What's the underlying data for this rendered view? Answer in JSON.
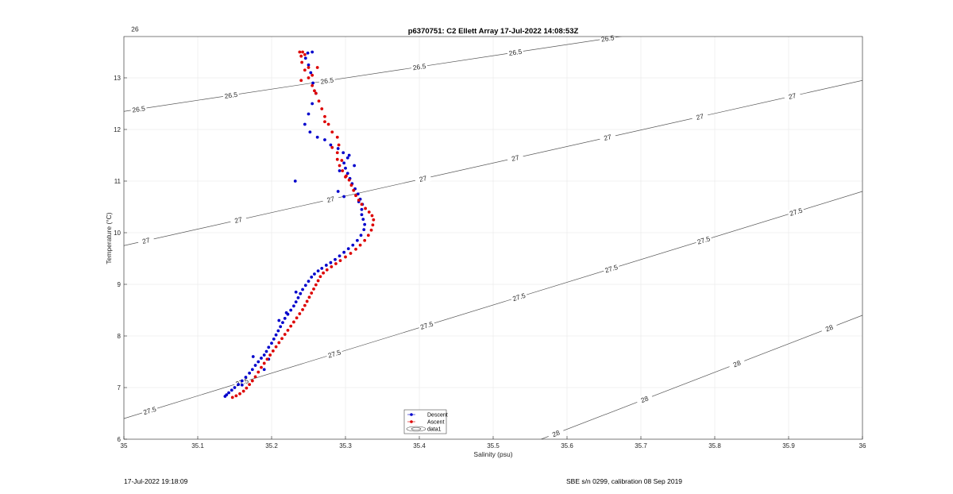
{
  "chart_data": {
    "type": "scatter",
    "title": "p6370751: C2 Ellett Array 17-Jul-2022 14:08:53Z",
    "xlabel": "Salinity (psu)",
    "ylabel": "Temperature (°C)",
    "xlim": [
      35,
      36
    ],
    "ylim": [
      6,
      13.8
    ],
    "x_ticks": [
      35,
      35.1,
      35.2,
      35.3,
      35.4,
      35.5,
      35.6,
      35.7,
      35.8,
      35.9,
      36
    ],
    "y_ticks": [
      6,
      7,
      8,
      9,
      10,
      11,
      12,
      13
    ],
    "grid": true,
    "legend": {
      "position": "bottom-center",
      "entries": [
        "Descent",
        "Ascent",
        "data1"
      ]
    },
    "series": [
      {
        "name": "Descent",
        "color": "#0000cc",
        "points": [
          [
            35.137,
            6.83
          ],
          [
            35.139,
            6.86
          ],
          [
            35.142,
            6.9
          ],
          [
            35.146,
            6.95
          ],
          [
            35.15,
            7.0
          ],
          [
            35.155,
            7.06
          ],
          [
            35.16,
            7.13
          ],
          [
            35.165,
            7.2
          ],
          [
            35.17,
            7.28
          ],
          [
            35.174,
            7.35
          ],
          [
            35.178,
            7.43
          ],
          [
            35.182,
            7.5
          ],
          [
            35.186,
            7.57
          ],
          [
            35.19,
            7.63
          ],
          [
            35.193,
            7.7
          ],
          [
            35.196,
            7.78
          ],
          [
            35.2,
            7.86
          ],
          [
            35.203,
            7.94
          ],
          [
            35.206,
            8.02
          ],
          [
            35.209,
            8.1
          ],
          [
            35.212,
            8.18
          ],
          [
            35.215,
            8.26
          ],
          [
            35.218,
            8.34
          ],
          [
            35.222,
            8.42
          ],
          [
            35.226,
            8.5
          ],
          [
            35.23,
            8.58
          ],
          [
            35.233,
            8.66
          ],
          [
            35.236,
            8.74
          ],
          [
            35.239,
            8.82
          ],
          [
            35.242,
            8.9
          ],
          [
            35.246,
            8.98
          ],
          [
            35.25,
            9.06
          ],
          [
            35.254,
            9.14
          ],
          [
            35.258,
            9.2
          ],
          [
            35.263,
            9.26
          ],
          [
            35.268,
            9.31
          ],
          [
            35.274,
            9.37
          ],
          [
            35.28,
            9.42
          ],
          [
            35.286,
            9.48
          ],
          [
            35.292,
            9.55
          ],
          [
            35.298,
            9.62
          ],
          [
            35.304,
            9.69
          ],
          [
            35.31,
            9.76
          ],
          [
            35.316,
            9.85
          ],
          [
            35.321,
            9.95
          ],
          [
            35.325,
            10.06
          ],
          [
            35.326,
            10.16
          ],
          [
            35.324,
            10.26
          ],
          [
            35.322,
            10.35
          ],
          [
            35.322,
            10.45
          ],
          [
            35.323,
            10.55
          ],
          [
            35.32,
            10.65
          ],
          [
            35.317,
            10.75
          ],
          [
            35.313,
            10.85
          ],
          [
            35.309,
            10.95
          ],
          [
            35.306,
            11.05
          ],
          [
            35.303,
            11.15
          ],
          [
            35.3,
            11.25
          ],
          [
            35.298,
            11.35
          ],
          [
            35.303,
            11.45
          ],
          [
            35.305,
            11.5
          ],
          [
            35.297,
            11.55
          ],
          [
            35.29,
            11.63
          ],
          [
            35.28,
            11.7
          ],
          [
            35.272,
            11.8
          ],
          [
            35.262,
            11.85
          ],
          [
            35.252,
            11.95
          ],
          [
            35.245,
            12.1
          ],
          [
            35.25,
            12.3
          ],
          [
            35.255,
            12.5
          ],
          [
            35.26,
            12.7
          ],
          [
            35.256,
            12.9
          ],
          [
            35.253,
            13.1
          ],
          [
            35.25,
            13.25
          ],
          [
            35.246,
            13.38
          ],
          [
            35.249,
            13.48
          ],
          [
            35.255,
            13.5
          ],
          [
            35.196,
            7.55
          ],
          [
            35.19,
            7.35
          ],
          [
            35.175,
            7.6
          ],
          [
            35.233,
            8.85
          ],
          [
            35.22,
            8.45
          ],
          [
            35.16,
            7.05
          ],
          [
            35.21,
            8.3
          ],
          [
            35.292,
            11.2
          ],
          [
            35.318,
            10.6
          ],
          [
            35.232,
            11.0
          ],
          [
            35.29,
            10.8
          ],
          [
            35.298,
            10.7
          ],
          [
            35.312,
            11.3
          ]
        ]
      },
      {
        "name": "Ascent",
        "color": "#dd0000",
        "points": [
          [
            35.147,
            6.81
          ],
          [
            35.152,
            6.84
          ],
          [
            35.157,
            6.88
          ],
          [
            35.162,
            6.93
          ],
          [
            35.166,
            6.99
          ],
          [
            35.17,
            7.06
          ],
          [
            35.174,
            7.13
          ],
          [
            35.178,
            7.21
          ],
          [
            35.182,
            7.3
          ],
          [
            35.186,
            7.39
          ],
          [
            35.19,
            7.47
          ],
          [
            35.194,
            7.55
          ],
          [
            35.198,
            7.63
          ],
          [
            35.202,
            7.71
          ],
          [
            35.206,
            7.79
          ],
          [
            35.21,
            7.87
          ],
          [
            35.214,
            7.95
          ],
          [
            35.218,
            8.03
          ],
          [
            35.222,
            8.11
          ],
          [
            35.226,
            8.19
          ],
          [
            35.23,
            8.27
          ],
          [
            35.234,
            8.35
          ],
          [
            35.238,
            8.43
          ],
          [
            35.242,
            8.51
          ],
          [
            35.245,
            8.59
          ],
          [
            35.248,
            8.67
          ],
          [
            35.251,
            8.75
          ],
          [
            35.254,
            8.83
          ],
          [
            35.257,
            8.91
          ],
          [
            35.26,
            8.99
          ],
          [
            35.263,
            9.07
          ],
          [
            35.266,
            9.15
          ],
          [
            35.27,
            9.22
          ],
          [
            35.275,
            9.28
          ],
          [
            35.281,
            9.34
          ],
          [
            35.287,
            9.4
          ],
          [
            35.293,
            9.46
          ],
          [
            35.3,
            9.53
          ],
          [
            35.307,
            9.6
          ],
          [
            35.314,
            9.68
          ],
          [
            35.32,
            9.76
          ],
          [
            35.326,
            9.85
          ],
          [
            35.331,
            9.95
          ],
          [
            35.335,
            10.05
          ],
          [
            35.337,
            10.15
          ],
          [
            35.338,
            10.25
          ],
          [
            35.336,
            10.33
          ],
          [
            35.332,
            10.4
          ],
          [
            35.327,
            10.47
          ],
          [
            35.322,
            10.55
          ],
          [
            35.318,
            10.63
          ],
          [
            35.314,
            10.72
          ],
          [
            35.311,
            10.82
          ],
          [
            35.308,
            10.92
          ],
          [
            35.305,
            11.02
          ],
          [
            35.301,
            11.1
          ],
          [
            35.296,
            11.2
          ],
          [
            35.292,
            11.3
          ],
          [
            35.289,
            11.42
          ],
          [
            35.289,
            11.55
          ],
          [
            35.291,
            11.7
          ],
          [
            35.289,
            11.85
          ],
          [
            35.282,
            11.95
          ],
          [
            35.277,
            12.1
          ],
          [
            35.272,
            12.25
          ],
          [
            35.268,
            12.4
          ],
          [
            35.264,
            12.55
          ],
          [
            35.26,
            12.7
          ],
          [
            35.255,
            12.85
          ],
          [
            35.25,
            13.0
          ],
          [
            35.245,
            13.15
          ],
          [
            35.241,
            13.3
          ],
          [
            35.24,
            13.42
          ],
          [
            35.242,
            13.5
          ],
          [
            35.238,
            13.5
          ],
          [
            35.245,
            13.45
          ],
          [
            35.262,
            13.2
          ],
          [
            35.258,
            12.75
          ],
          [
            35.24,
            12.95
          ],
          [
            35.255,
            13.05
          ],
          [
            35.3,
            11.08
          ],
          [
            35.295,
            11.4
          ],
          [
            35.272,
            12.15
          ],
          [
            35.282,
            11.65
          ],
          [
            35.25,
            13.2
          ]
        ]
      }
    ],
    "isopycnals": [
      {
        "value": 26,
        "labels": [
          "26"
        ]
      },
      {
        "value": 26.5,
        "labels": [
          "26.5",
          "26.5",
          "26.5",
          "26.5",
          "26.5",
          "26.5"
        ]
      },
      {
        "value": 27,
        "labels": [
          "27",
          "27",
          "27",
          "27",
          "27",
          "27",
          "27",
          "27"
        ]
      },
      {
        "value": 27.5,
        "labels": [
          "27.5",
          "27.5",
          "27.5",
          "27.5",
          "27.5",
          "27.5",
          "27.5",
          "27.5"
        ]
      },
      {
        "value": 28,
        "labels": [
          "28",
          "28",
          "28",
          "28"
        ]
      }
    ]
  },
  "footer": {
    "timestamp": "17-Jul-2022 19:18:09",
    "calibration": "SBE s/n 0299, calibration 08 Sep 2019"
  }
}
